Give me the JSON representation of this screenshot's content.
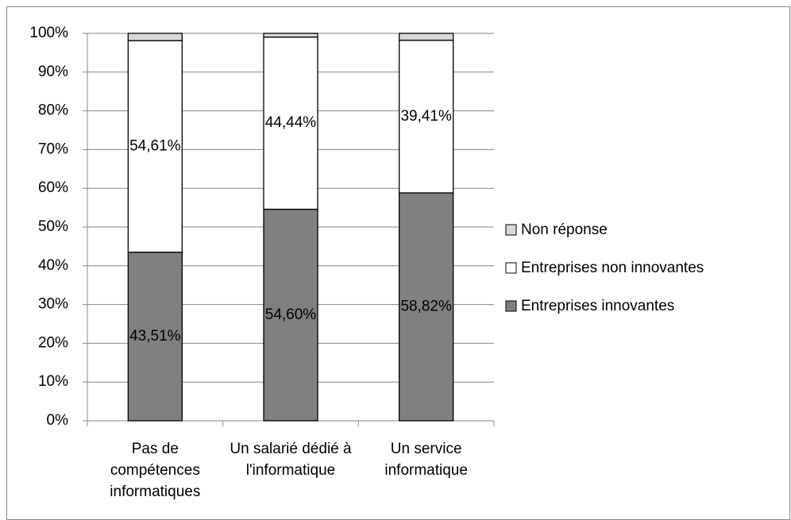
{
  "chart_data": {
    "type": "stacked_bar",
    "categories": [
      "Pas de compétences informatiques",
      "Un salarié dédié à l'informatique",
      "Un service informatique"
    ],
    "series": [
      {
        "name": "Entreprises innovantes",
        "color": "#808080",
        "values": [
          43.51,
          54.6,
          58.82
        ],
        "value_labels": [
          "43,51%",
          "54,60%",
          "58,82%"
        ]
      },
      {
        "name": "Entreprises non innovantes",
        "color": "#ffffff",
        "values": [
          54.61,
          44.44,
          39.41
        ],
        "value_labels": [
          "54,61%",
          "44,44%",
          "39,41%"
        ]
      },
      {
        "name": "Non réponse",
        "color": "#d9d9d9",
        "values": [
          1.88,
          0.96,
          1.77
        ]
      }
    ],
    "ylim": [
      0,
      100
    ],
    "yticks": [
      {
        "value": 0,
        "label": "0%"
      },
      {
        "value": 10,
        "label": "10%"
      },
      {
        "value": 20,
        "label": "20%"
      },
      {
        "value": 30,
        "label": "30%"
      },
      {
        "value": 40,
        "label": "40%"
      },
      {
        "value": 50,
        "label": "50%"
      },
      {
        "value": 60,
        "label": "60%"
      },
      {
        "value": 70,
        "label": "70%"
      },
      {
        "value": 80,
        "label": "80%"
      },
      {
        "value": 90,
        "label": "90%"
      },
      {
        "value": 100,
        "label": "100%"
      }
    ],
    "grid": true,
    "legend": "right"
  }
}
